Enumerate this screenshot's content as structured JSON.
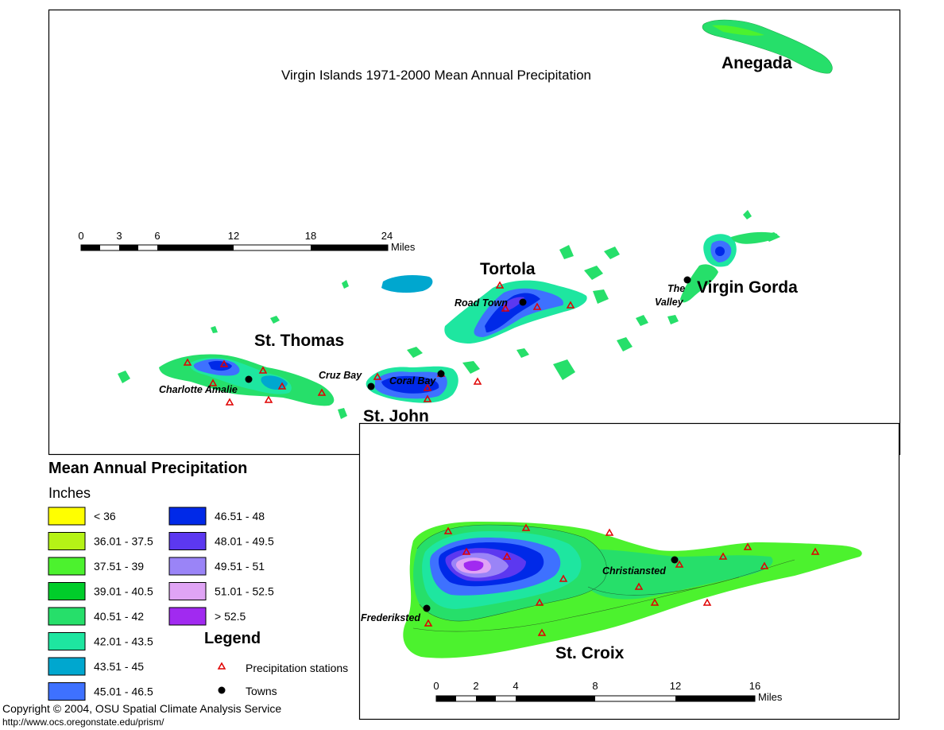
{
  "map": {
    "title": "Virgin Islands 1971-2000 Mean Annual Precipitation",
    "islands": {
      "anegada": "Anegada",
      "tortola": "Tortola",
      "virgin_gorda": "Virgin Gorda",
      "st_thomas": "St. Thomas",
      "st_john": "St. John",
      "st_croix": "St. Croix"
    },
    "towns": {
      "road_town": "Road Town",
      "the": "The",
      "valley": "Valley",
      "charlotte_amalie": "Charlotte Amalie",
      "cruz_bay": "Cruz Bay",
      "coral_bay": "Coral Bay",
      "christiansted": "Christiansted",
      "frederiksted": "Frederiksted"
    },
    "colors": {
      "yellow": "#ffff00",
      "lime": "#b5f316",
      "bright_green": "#4cf22e",
      "green": "#00cd2a",
      "medium_green": "#26df6a",
      "aqua_green": "#1ee6a0",
      "teal": "#00a7cf",
      "light_blue": "#3e71ff",
      "blue": "#0029e8",
      "indigo": "#5c38f0",
      "lavender": "#9a84f7",
      "pink": "#e0a4f5",
      "violet": "#a12af0"
    }
  },
  "scale_main": {
    "ticks": [
      "0",
      "3",
      "6",
      "12",
      "18",
      "24"
    ],
    "unit": "Miles"
  },
  "scale_inset": {
    "ticks": [
      "0",
      "2",
      "4",
      "8",
      "12",
      "16"
    ],
    "unit": "Miles"
  },
  "legend": {
    "heading": "Mean Annual Precipitation",
    "units": "Inches",
    "col1": [
      {
        "label": "< 36",
        "color": "#ffff00"
      },
      {
        "label": "36.01 - 37.5",
        "color": "#b5f316"
      },
      {
        "label": "37.51 - 39",
        "color": "#4cf22e"
      },
      {
        "label": "39.01 - 40.5",
        "color": "#00cd2a"
      },
      {
        "label": "40.51 - 42",
        "color": "#26df6a"
      },
      {
        "label": "42.01 - 43.5",
        "color": "#1ee6a0"
      },
      {
        "label": "43.51 - 45",
        "color": "#00a7cf"
      },
      {
        "label": "45.01 - 46.5",
        "color": "#3e71ff"
      }
    ],
    "col2": [
      {
        "label": "46.51 - 48",
        "color": "#0029e8"
      },
      {
        "label": "48.01 - 49.5",
        "color": "#5c38f0"
      },
      {
        "label": "49.51 - 51",
        "color": "#9a84f7"
      },
      {
        "label": "51.01 - 52.5",
        "color": "#e0a4f5"
      },
      {
        "label": "> 52.5",
        "color": "#a12af0"
      }
    ],
    "legend_title": "Legend",
    "stations_label": "Precipitation stations",
    "towns_label": "Towns"
  },
  "footer": {
    "copyright": "Copyright © 2004, OSU Spatial Climate Analysis Service",
    "url": "http://www.ocs.oregonstate.edu/prism/"
  }
}
